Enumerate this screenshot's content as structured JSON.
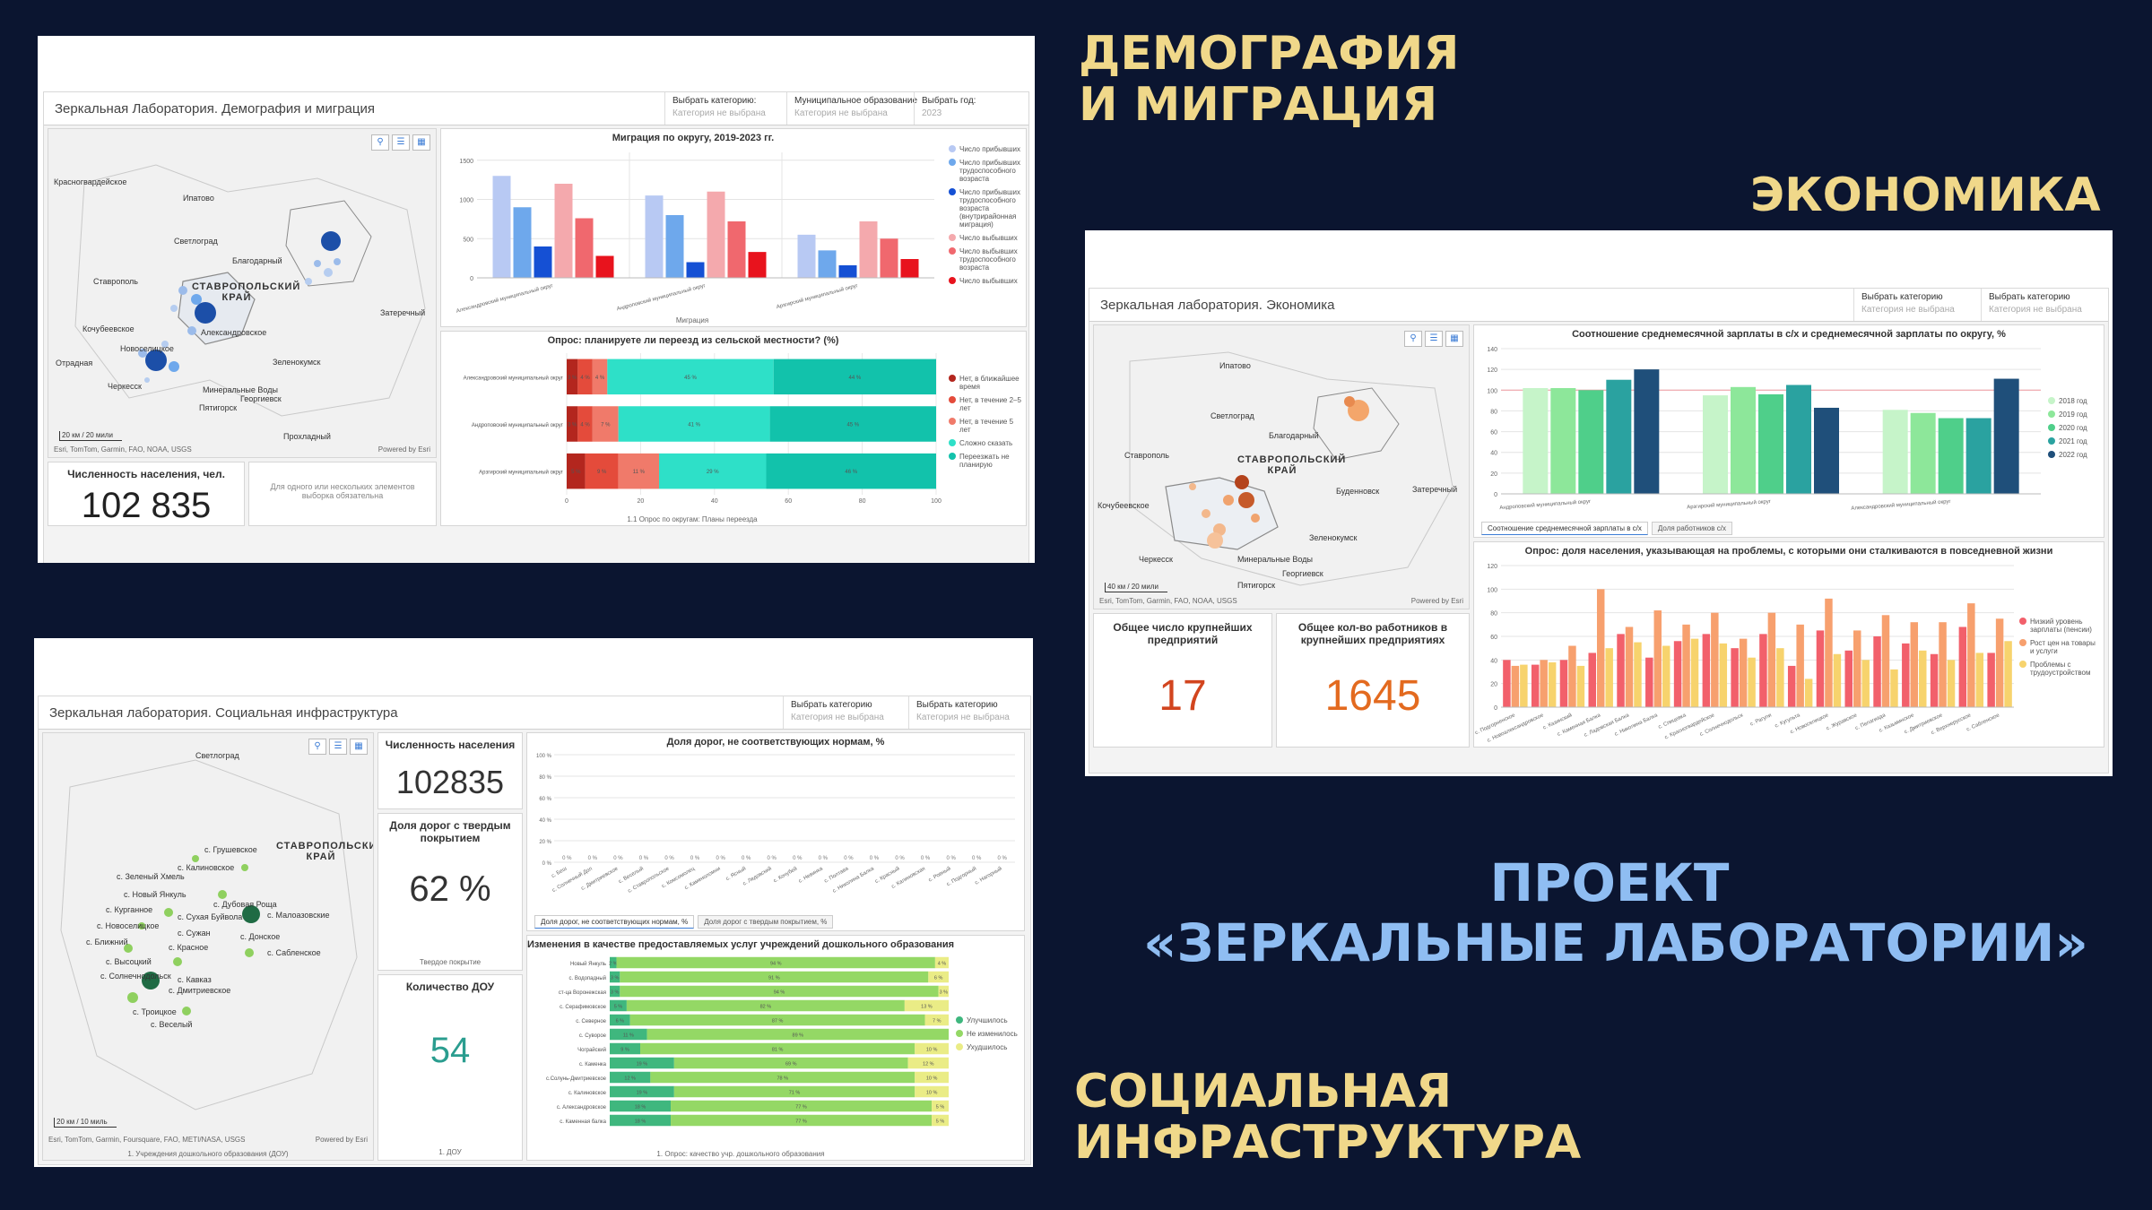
{
  "headings": {
    "demography_line1": "ДЕМОГРАФИЯ",
    "demography_line2": "И МИГРАЦИЯ",
    "economy": "ЭКОНОМИКА",
    "project_line1": "ПРОЕКТ",
    "project_line2": "«ЗЕРКАЛЬНЫЕ ЛАБОРАТОРИИ»",
    "social_line1": "СОЦИАЛЬНАЯ",
    "social_line2": "ИНФРАСТРУКТУРА"
  },
  "demography": {
    "title": "Зеркальная Лаборатория. Демография и миграция",
    "filters": [
      {
        "label": "Выбрать категорию:",
        "value": "Категория не выбрана"
      },
      {
        "label": "Муниципальное образование",
        "value": "Категория не выбрана"
      },
      {
        "label": "Выбрать год:",
        "value": "2023"
      }
    ],
    "map": {
      "labels": [
        "Красногвардейское",
        "Ипатово",
        "Светлоград",
        "Благодарный",
        "Ставрополь",
        "Александровское",
        "Кочубеевское",
        "Новоселицкое",
        "Отрадная",
        "Зеленокумск",
        "Черкесск",
        "Минеральные Воды",
        "Пятигорск",
        "Георгиевск",
        "Прохладный",
        "Затеречный"
      ],
      "region": "СТАВРОПОЛЬСКИЙ КРАЙ",
      "credit": "Esri, TomTom, Garmin, FAO, NOAA, USGS",
      "powered": "Powered by Esri",
      "scale": "20 км / 20 мили"
    },
    "kpi": {
      "label": "Численность населения, чел.",
      "value": "102 835"
    },
    "note": "Для одного или нескольких элементов выборка обязательна",
    "chart_migration": {
      "title": "Миграция по округу, 2019-2023 гг.",
      "footer": "Миграция",
      "legend": [
        "Число прибывших",
        "Число прибывших трудоспособного возраста",
        "Число прибывших трудоспособного возраста (внутрирайонная миграция)",
        "Число выбывших",
        "Число выбывших трудоспособного возраста",
        "Число выбывших"
      ]
    },
    "chart_survey": {
      "title": "Опрос: планируете ли переезд из сельской местности? (%)",
      "footer": "1.1 Опрос по округам: Планы переезда",
      "legend": [
        "Нет, в ближайшее время",
        "Нет, в течение 2–5 лет",
        "Нет, в течение 5 лет",
        "Сложно сказать",
        "Переезжать не планирую"
      ]
    }
  },
  "economy": {
    "title": "Зеркальная лаборатория. Экономика",
    "filters": [
      {
        "label": "Выбрать категорию",
        "value": "Категория не выбрана"
      },
      {
        "label": "Выбрать категорию",
        "value": "Категория не выбрана"
      }
    ],
    "map": {
      "labels": [
        "Ипатово",
        "Светлоград",
        "Благодарный",
        "Ставрополь",
        "Кочубеевское",
        "Буденновск",
        "Затеречный",
        "Зеленокумск",
        "Черкесск",
        "Минеральные Воды",
        "Пятигорск",
        "Георгиевск"
      ],
      "region": "СТАВРОПОЛЬСКИЙ КРАЙ",
      "credit": "Esri, TomTom, Garmin, FAO, NOAA, USGS",
      "powered": "Powered by Esri",
      "scale": "40 км / 20 мили"
    },
    "kpi1": {
      "label": "Общее число крупнейших предприятий",
      "value": "17"
    },
    "kpi2": {
      "label": "Общее кол-во работников в крупнейших предприятиях",
      "value": "1645"
    },
    "chart_salary": {
      "title": "Соотношение среднемесячной зарплаты в с/х и среднемесячной зарплаты по округу, %",
      "tabs": [
        "Соотношение среднемесячной зарплаты в с/х",
        "Доля работников с/х"
      ],
      "legend": [
        "2018 год",
        "2019 год",
        "2020 год",
        "2021 год",
        "2022 год"
      ]
    },
    "chart_problems": {
      "title": "Опрос: доля населения, указывающая на проблемы, с которыми они сталкиваются в повседневной жизни",
      "legend": [
        "Низкий уровень зарплаты (пенсии)",
        "Рост цен на товары и услуги",
        "Проблемы с трудоустройством"
      ]
    }
  },
  "social": {
    "title": "Зеркальная лаборатория. Социальная инфраструктура",
    "filters": [
      {
        "label": "Выбрать категорию",
        "value": "Категория не выбрана"
      },
      {
        "label": "Выбрать категорию",
        "value": "Категория не выбрана"
      }
    ],
    "map": {
      "labels": [
        "Светлоград",
        "с. Грушевское",
        "с. Калиновское",
        "с. Зеленый Хмель",
        "с. Новый Янкуль",
        "с. Дубовая Роща",
        "с. Курганное",
        "с. Сухая Буйвола",
        "с. Сужан",
        "с. Красное",
        "с. Донское",
        "с. Новоселицкое",
        "с. Ближний",
        "с. Высоцкий",
        "с. Веселый",
        "с. Солнечнодольск",
        "с. Кавказ",
        "с. Малоазовские",
        "с. Сабленское",
        "с. Дмитриевское",
        "с. Троицкое"
      ],
      "region": "СТАВРОПОЛЬСКИЙ КРАЙ",
      "credit": "Esri, TomTom, Garmin, Foursquare, FAO, METI/NASA, USGS",
      "powered": "Powered by Esri",
      "scale": "20 км / 10 миль",
      "footer": "1. Учреждения дошкольного образования (ДОУ)"
    },
    "kpi_population": {
      "label": "Численность населения",
      "value": "102835"
    },
    "kpi_roads": {
      "label": "Доля дорог с твердым покрытием",
      "value": "62 %",
      "footer": "Твердое покрытие"
    },
    "kpi_dou": {
      "label": "Количество ДОУ",
      "value": "54",
      "footer": "1. ДОУ"
    },
    "chart_roads": {
      "title": "Доля дорог, не соответствующих нормам, %",
      "tabs": [
        "Доля дорог, не соответствующих нормам, %",
        "Доля дорог с твердым покрытием, %"
      ],
      "yticks": [
        "100 %",
        "80 %",
        "60 %",
        "40 %",
        "20 %",
        "0 %"
      ]
    },
    "chart_quality": {
      "title": "Изменения в качестве предоставляемых услуг учреждений дошкольного образования",
      "footer": "1. Опрос: качество учр. дошкольного образования",
      "legend": [
        "Улучшилось",
        "Не изменилось",
        "Ухудшилось"
      ]
    }
  },
  "chart_data": [
    {
      "type": "bar",
      "title": "Миграция по округу, 2019-2023 гг.",
      "xlabel": "Миграция",
      "categories": [
        "Александровский муниципальный округ",
        "Андроповский муниципальный округ",
        "Арзгирский муниципальный округ"
      ],
      "series": [
        {
          "name": "Число прибывших",
          "values": [
            1300,
            1050,
            550
          ]
        },
        {
          "name": "Число прибывших трудоспособного возраста",
          "values": [
            900,
            800,
            350
          ]
        },
        {
          "name": "Число прибывших трудоспособного возраста (внутрирайонная миграция)",
          "values": [
            400,
            200,
            160
          ]
        },
        {
          "name": "Число выбывших",
          "values": [
            1200,
            1100,
            720
          ]
        },
        {
          "name": "Число выбывших трудоспособного возраста",
          "values": [
            760,
            720,
            500
          ]
        },
        {
          "name": "Число выбывших",
          "values": [
            280,
            330,
            240
          ]
        }
      ],
      "yticks": [
        0,
        500,
        1000,
        1500
      ],
      "ylim": [
        0,
        1600
      ],
      "colors": [
        "#b8c9f3",
        "#6ea8ec",
        "#1550d4",
        "#f4a9ad",
        "#f0686e",
        "#e8131d"
      ]
    },
    {
      "type": "bar",
      "orientation": "horizontal-stacked",
      "title": "Опрос: планируете ли переезд из сельской местности? (%)",
      "categories": [
        "Александровский муниципальный округ",
        "Андроповский муниципальный округ",
        "Арзгирский муниципальный округ"
      ],
      "series": [
        {
          "name": "Нет, в ближайшее время",
          "values": [
            3,
            3,
            5
          ]
        },
        {
          "name": "Нет, в течение 2–5 лет",
          "values": [
            4,
            4,
            9
          ]
        },
        {
          "name": "Нет, в течение 5 лет",
          "values": [
            4,
            7,
            11
          ]
        },
        {
          "name": "Сложно сказать",
          "values": [
            45,
            41,
            29
          ]
        },
        {
          "name": "Переезжать не планирую",
          "values": [
            44,
            45,
            46
          ]
        }
      ],
      "labels": [
        [
          "3 %",
          "4 %",
          "4 %",
          "45 %",
          "44 %"
        ],
        [
          "3 %",
          "4 %",
          "7 %",
          "41 %",
          "45 %"
        ],
        [
          "5 %",
          "9 %",
          "11 %",
          "29 %",
          "46 %"
        ]
      ],
      "xticks": [
        0,
        20,
        40,
        60,
        80,
        100
      ],
      "xlim": [
        0,
        100
      ],
      "colors": [
        "#b3261e",
        "#e44b3b",
        "#f07a6a",
        "#2ee0c8",
        "#12c2ab"
      ]
    },
    {
      "type": "bar",
      "title": "Соотношение среднемесячной зарплаты в с/х и среднемесячной зарплаты по округу, %",
      "categories": [
        "Андроповский муниципальный округ",
        "Арзгирский муниципальный округ",
        "Александровский муниципальный округ"
      ],
      "series": [
        {
          "name": "2018 год",
          "values": [
            102,
            95,
            81
          ]
        },
        {
          "name": "2019 год",
          "values": [
            102,
            103,
            78
          ]
        },
        {
          "name": "2020 год",
          "values": [
            100,
            96,
            73
          ]
        },
        {
          "name": "2021 год",
          "values": [
            110,
            105,
            73
          ]
        },
        {
          "name": "2022 год",
          "values": [
            120,
            83,
            111
          ]
        }
      ],
      "reference_line": 100,
      "yticks": [
        0,
        20,
        40,
        60,
        80,
        100,
        120,
        140
      ],
      "ylim": [
        0,
        140
      ],
      "colors": [
        "#c6f4c9",
        "#8de79a",
        "#4fcf8a",
        "#2aa2a0",
        "#1f4f7a"
      ]
    },
    {
      "type": "bar",
      "title": "Опрос: доля населения, указывающая на проблемы, с которыми они сталкиваются в повседневной жизни",
      "categories": [
        "с. Подгорненское",
        "с. Новоалександровское",
        "с. Казинский",
        "с. Каменная Балка",
        "с. Ладовская Балка",
        "с. Николина Балка",
        "с. Спицевка",
        "с. Красногвардейское",
        "с. Солнечнодольск",
        "с. Рагули",
        "с. Кугульта",
        "с. Новоселицкое",
        "с. Журавское",
        "с. Пелагиада",
        "с. Казьминское",
        "с. Дмитриевское",
        "с. Верхнерусское",
        "с. Сабленское"
      ],
      "series": [
        {
          "name": "Низкий уровень зарплаты (пенсии)",
          "values": [
            40,
            36,
            40,
            46,
            62,
            42,
            56,
            62,
            50,
            62,
            35,
            65,
            48,
            60,
            54,
            45,
            68,
            46
          ]
        },
        {
          "name": "Рост цен на товары и услуги",
          "values": [
            35,
            40,
            52,
            100,
            68,
            82,
            70,
            80,
            58,
            80,
            70,
            92,
            65,
            78,
            72,
            72,
            88,
            75
          ]
        },
        {
          "name": "Проблемы с трудоустройством",
          "values": [
            36,
            38,
            35,
            50,
            55,
            52,
            58,
            54,
            42,
            50,
            24,
            45,
            40,
            32,
            48,
            40,
            46,
            56
          ]
        }
      ],
      "yticks": [
        0,
        20,
        40,
        60,
        80,
        100,
        120
      ],
      "ylim": [
        0,
        120
      ],
      "colors": [
        "#f2606b",
        "#f7a06e",
        "#f7d36d"
      ]
    },
    {
      "type": "bar",
      "title": "Доля дорог, не соответствующих нормам, %",
      "categories": [
        "с. Беш",
        "с. Солнечный Дол",
        "с. Дмитриевское",
        "с. Веселый",
        "с. Ставропольское",
        "с. Комсомолец",
        "с. Каменоломни",
        "с. Ясный",
        "с. Ледовский",
        "с. Кочубей",
        "с. Невинка",
        "с. Полтава",
        "с. Николина Балка",
        "с. Красный",
        "с. Калиновская",
        "с. Ровный",
        "с. Подгорный",
        "с. Нагорный"
      ],
      "values": [
        0,
        0,
        0,
        0,
        0,
        0,
        0,
        0,
        0,
        0,
        0,
        0,
        0,
        0,
        0,
        0,
        0,
        0
      ],
      "labels": [
        "0 %",
        "0 %",
        "0 %",
        "0 %",
        "0 %",
        "0 %",
        "0 %",
        "0 %",
        "0 %",
        "0 %",
        "0 %",
        "0 %",
        "0 %",
        "0 %",
        "0 %",
        "0 %",
        "0 %",
        "0 %"
      ],
      "yticks": [
        "100 %",
        "80 %",
        "60 %",
        "40 %",
        "20 %",
        "0 %"
      ],
      "ylim": [
        0,
        100
      ],
      "colors": [
        "#9ad08a"
      ]
    },
    {
      "type": "bar",
      "orientation": "horizontal-stacked",
      "title": "Изменения в качестве предоставляемых услуг учреждений дошкольного образования",
      "categories": [
        "Новый Янкуль",
        "с. Водопадный",
        "ст-ца Воронежская",
        "с. Серафимовское",
        "с. Северное",
        "с. Суворое",
        "Чограйский",
        "с. Каменка",
        "с.Солунь-Дмитриевское",
        "с. Калиновское",
        "с. Александровское",
        "с. Каменная балка"
      ],
      "series": [
        {
          "name": "Улучшилось",
          "values": [
            2,
            3,
            3,
            5,
            6,
            11,
            9,
            19,
            12,
            19,
            18,
            18
          ]
        },
        {
          "name": "Не изменилось",
          "values": [
            94,
            91,
            94,
            82,
            87,
            89,
            81,
            69,
            78,
            71,
            77,
            77
          ]
        },
        {
          "name": "Ухудшилось",
          "values": [
            4,
            6,
            3,
            13,
            7,
            0,
            10,
            12,
            10,
            10,
            5,
            5
          ]
        }
      ],
      "labels": [
        [
          "2 %",
          "94 %",
          "4 %"
        ],
        [
          "3 %",
          "91 %",
          "6 %"
        ],
        [
          "3 %",
          "94 %",
          "3 %"
        ],
        [
          "5 %",
          "82 %",
          "13 %"
        ],
        [
          "6 %",
          "87 %",
          "7 %"
        ],
        [
          "11 %",
          "89 %",
          ""
        ],
        [
          "9 %",
          "81 %",
          "10 %"
        ],
        [
          "19 %",
          "69 %",
          "12 %"
        ],
        [
          "12 %",
          "78 %",
          "10 %"
        ],
        [
          "19 %",
          "71 %",
          "10 %"
        ],
        [
          "18 %",
          "77 %",
          "5 %"
        ],
        [
          "18 %",
          "77 %",
          "5 %"
        ]
      ],
      "xlim": [
        0,
        100
      ],
      "colors": [
        "#3fb77e",
        "#94d865",
        "#eaec86"
      ]
    }
  ]
}
